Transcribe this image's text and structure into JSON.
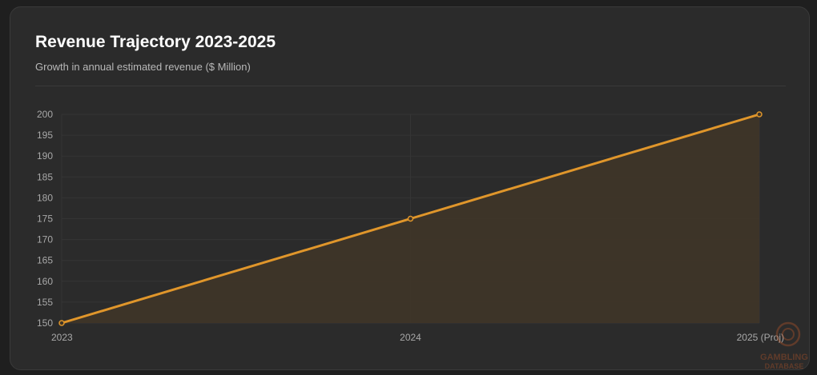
{
  "header": {
    "title": "Revenue Trajectory 2023-2025",
    "subtitle": "Growth in annual estimated revenue ($ Million)"
  },
  "colors": {
    "line": "#e0962b",
    "fill": "#3f3528",
    "grid": "#353535",
    "background": "#2b2b2b"
  },
  "chart_data": {
    "type": "area",
    "title": "Revenue Trajectory 2023-2025",
    "subtitle": "Growth in annual estimated revenue ($ Million)",
    "xlabel": "",
    "ylabel": "",
    "categories": [
      "2023",
      "2024",
      "2025 (Proj)"
    ],
    "values": [
      150,
      175,
      200
    ],
    "ylim": [
      150,
      200
    ],
    "yticks": [
      "150",
      "155",
      "160",
      "165",
      "170",
      "175",
      "180",
      "185",
      "190",
      "195",
      "200"
    ],
    "grid": true,
    "legend": "none"
  },
  "watermark": {
    "text": "GAMBLING DATABASE",
    "icon": "chip-logo-icon"
  }
}
